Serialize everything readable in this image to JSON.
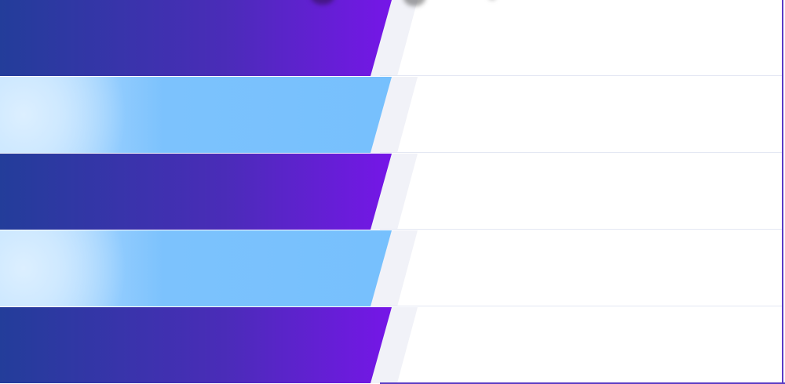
{
  "bands": [
    {
      "variant": "purple"
    },
    {
      "variant": "blue"
    },
    {
      "variant": "purple"
    },
    {
      "variant": "blue"
    },
    {
      "variant": "purple"
    }
  ],
  "colors": {
    "purple_start": "#233d9a",
    "purple_end": "#7a14ec",
    "blue_light": "#cfe9ff",
    "blue_main": "#76c0fd",
    "frame": "#5b3cc4",
    "divider": "#e3e7f3"
  }
}
